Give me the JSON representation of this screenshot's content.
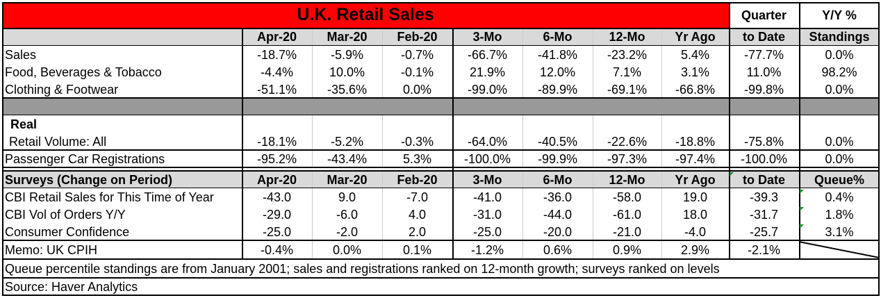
{
  "title": "U.K. Retail Sales",
  "header_top": {
    "quarter": "Quarter",
    "yy": "Y/Y %"
  },
  "header": [
    "Apr-20",
    "Mar-20",
    "Feb-20",
    "3-Mo",
    "6-Mo",
    "12-Mo",
    "Yr Ago",
    "to Date",
    "Standings"
  ],
  "rows1": [
    {
      "label": "Sales",
      "values": [
        "-18.7%",
        "-5.9%",
        "-0.7%",
        "-66.7%",
        "-41.8%",
        "-23.2%",
        "5.4%",
        "-77.7%",
        "0.0%"
      ]
    },
    {
      "label": "Food, Beverages & Tobacco",
      "values": [
        "-4.4%",
        "10.0%",
        "-0.1%",
        "21.9%",
        "12.0%",
        "7.1%",
        "3.1%",
        "11.0%",
        "98.2%"
      ]
    },
    {
      "label": "Clothing & Footwear",
      "values": [
        "-51.1%",
        "-35.6%",
        "0.0%",
        "-99.0%",
        "-89.9%",
        "-69.1%",
        "-66.8%",
        "-99.8%",
        "0.0%"
      ]
    }
  ],
  "real_label": "Real",
  "real_row": {
    "label": "Retail Volume: All",
    "values": [
      "-18.1%",
      "-5.2%",
      "-0.3%",
      "-64.0%",
      "-40.5%",
      "-22.6%",
      "-18.8%",
      "-75.8%",
      "0.0%"
    ]
  },
  "car_row": {
    "label": "Passenger Car Registrations",
    "values": [
      "-95.2%",
      "-43.4%",
      "5.3%",
      "-100.0%",
      "-99.9%",
      "-97.3%",
      "-97.4%",
      "-100.0%",
      "0.0%"
    ]
  },
  "surveys_header": {
    "label": "Surveys (Change on Period)",
    "cols": [
      "Apr-20",
      "Mar-20",
      "Feb-20",
      "3-Mo",
      "6-Mo",
      "12-Mo",
      "Yr Ago",
      "to Date",
      "Queue%"
    ]
  },
  "surveys": [
    {
      "label": "CBI Retail Sales for This Time of Year",
      "values": [
        "-43.0",
        "9.0",
        "-7.0",
        "-41.0",
        "-36.0",
        "-58.0",
        "19.0",
        "-39.3",
        "0.4%"
      ]
    },
    {
      "label": "CBI Vol of Orders Y/Y",
      "values": [
        "-29.0",
        "-6.0",
        "4.0",
        "-31.0",
        "-44.0",
        "-61.0",
        "18.0",
        "-31.7",
        "1.8%"
      ]
    },
    {
      "label": "Consumer Confidence",
      "values": [
        "-25.0",
        "-2.0",
        "2.0",
        "-25.0",
        "-20.0",
        "-21.0",
        "-4.0",
        "-25.7",
        "3.1%"
      ]
    }
  ],
  "memo": {
    "label": "Memo: UK CPIH",
    "values": [
      "-0.4%",
      "0.0%",
      "0.1%",
      "-1.2%",
      "0.6%",
      "0.9%",
      "2.9%",
      "-2.1%"
    ]
  },
  "footnote": "Queue percentile standings are from January 2001; sales and registrations ranked on 12-month growth; surveys ranked on levels",
  "source": "Source: Haver Analytics",
  "colors": {
    "title_bg": "#ff0000",
    "header_bg": "#d9d9d9",
    "separator_bg": "#999999",
    "flag": "#1e8a2e"
  }
}
